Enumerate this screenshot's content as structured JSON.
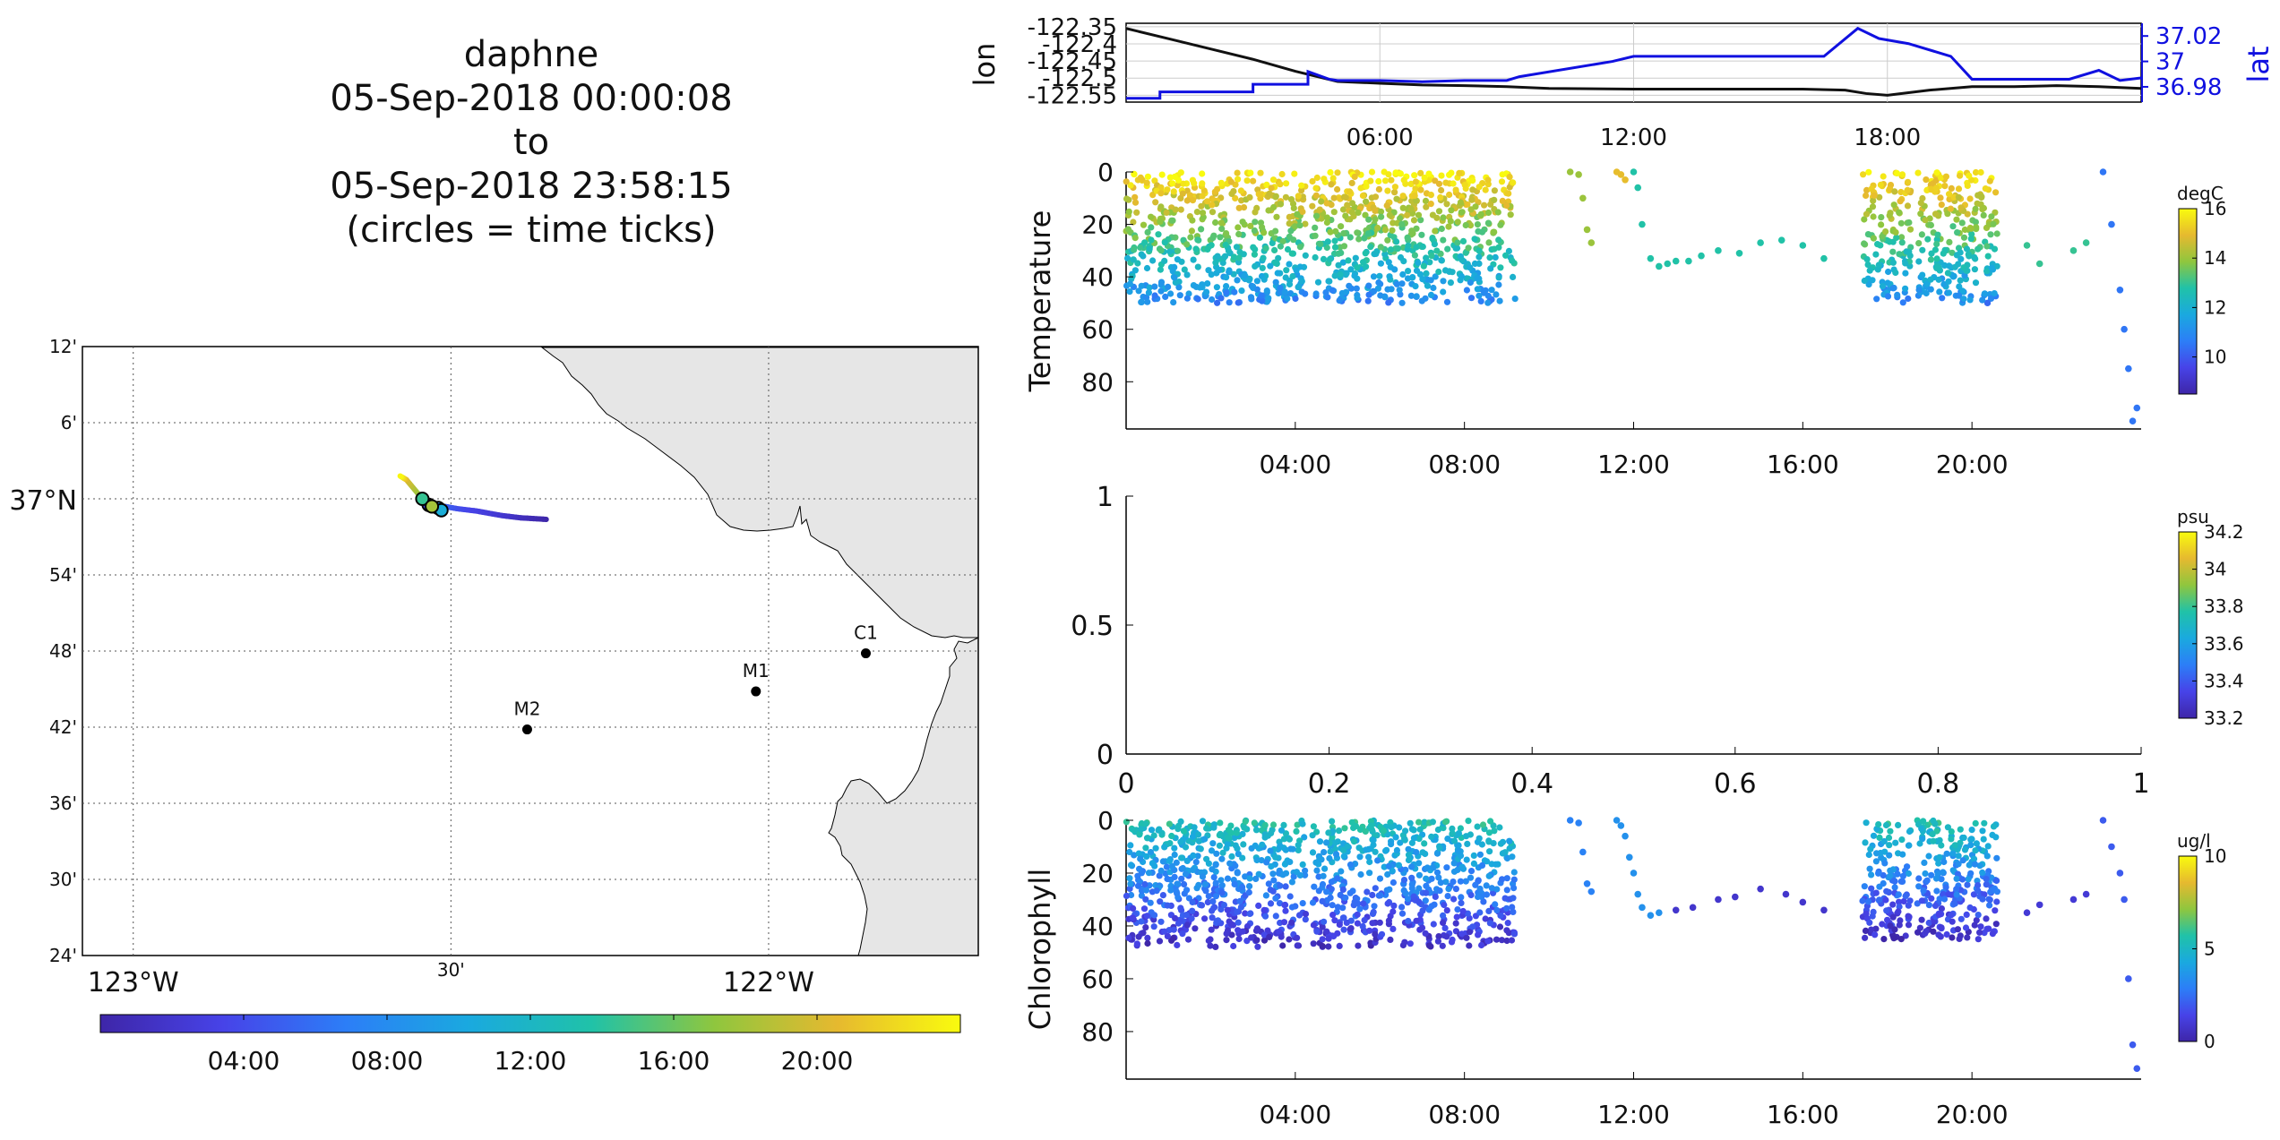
{
  "header": {
    "vehicle": "daphne",
    "start": "05-Sep-2018 00:00:08",
    "to": "to",
    "end": "05-Sep-2018 23:58:15",
    "note": "(circles = time ticks)"
  },
  "colors": {
    "lat_line": "#1010e0",
    "lon_line": "#111111",
    "land": "#e6e6e6",
    "colormap": [
      "#3e26a8",
      "#4743e8",
      "#2c7ef7",
      "#1aa9df",
      "#20c2a8",
      "#8fc63e",
      "#e6b92f",
      "#f9fb0e"
    ]
  },
  "chart_data": [
    {
      "type": "map",
      "lat_ticks": [
        "12'",
        "6'",
        "37°N",
        "54'",
        "48'",
        "42'",
        "36'",
        "30'",
        "24'"
      ],
      "lon_ticks": [
        "123°W",
        "30'",
        "122°W"
      ],
      "xlim": [
        -123.08,
        -121.67
      ],
      "ylim": [
        36.4,
        37.2
      ],
      "stations": [
        {
          "name": "C1",
          "lon": -121.847,
          "lat": 36.797
        },
        {
          "name": "M1",
          "lon": -122.02,
          "lat": 36.747
        },
        {
          "name": "M2",
          "lon": -122.38,
          "lat": 36.697
        }
      ],
      "track_time_ticks": [
        "04:00",
        "08:00",
        "12:00",
        "16:00",
        "20:00"
      ],
      "track_points": [
        {
          "lon": -122.35,
          "lat": 36.973,
          "t": 0
        },
        {
          "lon": -122.39,
          "lat": 36.975,
          "t": 1
        },
        {
          "lon": -122.42,
          "lat": 36.978,
          "t": 2
        },
        {
          "lon": -122.46,
          "lat": 36.984,
          "t": 3
        },
        {
          "lon": -122.49,
          "lat": 36.987,
          "t": 4
        },
        {
          "lon": -122.51,
          "lat": 36.99,
          "t": 5
        },
        {
          "lon": -122.525,
          "lat": 36.985,
          "t": 7
        },
        {
          "lon": -122.53,
          "lat": 36.99,
          "t": 9
        },
        {
          "lon": -122.535,
          "lat": 36.99,
          "t": 12
        },
        {
          "lon": -122.54,
          "lat": 36.995,
          "t": 15
        },
        {
          "lon": -122.55,
          "lat": 37.005,
          "t": 17
        },
        {
          "lon": -122.57,
          "lat": 37.025,
          "t": 20
        },
        {
          "lon": -122.58,
          "lat": 37.03,
          "t": 24
        }
      ]
    },
    {
      "type": "line",
      "ylabel": "lon",
      "ylabel_right": "lat",
      "y_ticks": [
        "-122.35",
        "-122.4",
        "-122.45",
        "-122.5",
        "-122.55"
      ],
      "y_ticks_right": [
        "37.02",
        "37",
        "36.98"
      ],
      "x_ticks": [
        "06:00",
        "12:00",
        "18:00"
      ],
      "xlim": [
        0,
        24
      ],
      "ylim": [
        -122.57,
        -122.34
      ],
      "ylim_right": [
        36.968,
        37.03
      ],
      "grid": true,
      "series": [
        {
          "axis": "left",
          "x": [
            0,
            1,
            2,
            3,
            4,
            5,
            6,
            7,
            8,
            9,
            10,
            12,
            14,
            16,
            17,
            17.5,
            18,
            19,
            20,
            21,
            22,
            23,
            24
          ],
          "y": [
            -122.355,
            -122.385,
            -122.415,
            -122.445,
            -122.48,
            -122.51,
            -122.515,
            -122.52,
            -122.522,
            -122.525,
            -122.53,
            -122.532,
            -122.532,
            -122.532,
            -122.535,
            -122.545,
            -122.55,
            -122.535,
            -122.525,
            -122.525,
            -122.522,
            -122.525,
            -122.53
          ]
        },
        {
          "axis": "right",
          "x": [
            0,
            0.8,
            0.8,
            3,
            3,
            4.3,
            4.3,
            4.8,
            5,
            6,
            7,
            8,
            9,
            9.3,
            11.5,
            12,
            16.5,
            17.3,
            17.8,
            18.5,
            19.5,
            20,
            21,
            22.3,
            23,
            23.5,
            24
          ],
          "y": [
            36.971,
            36.971,
            36.976,
            36.976,
            36.982,
            36.982,
            36.992,
            36.986,
            36.985,
            36.985,
            36.984,
            36.985,
            36.985,
            36.988,
            37.0,
            37.004,
            37.004,
            37.026,
            37.018,
            37.014,
            37.004,
            36.986,
            36.986,
            36.986,
            36.993,
            36.985,
            36.987
          ]
        }
      ]
    },
    {
      "type": "scatter",
      "ylabel": "Temperature",
      "x_ticks": [
        "04:00",
        "08:00",
        "12:00",
        "16:00",
        "20:00"
      ],
      "y_ticks": [
        "0",
        "20",
        "40",
        "60",
        "80"
      ],
      "xlim": [
        0,
        24
      ],
      "ylim": [
        0,
        98
      ],
      "y_reversed": true,
      "colorbar": {
        "label": "degC",
        "ticks": [
          "16",
          "14",
          "12",
          "10"
        ],
        "range": [
          8.5,
          16
        ]
      },
      "segments": [
        {
          "t_start": 0,
          "t_end": 9.2,
          "depth_max": 50,
          "surface_value": 15.8,
          "bottom_value": 10.8
        },
        {
          "t_start": 17.4,
          "t_end": 20.6,
          "depth_max": 50,
          "surface_value": 15.8,
          "bottom_value": 10.8
        }
      ],
      "tracks": [
        {
          "x": [
            10.5,
            10.7,
            10.8,
            10.9,
            11.0
          ],
          "y": [
            0,
            1,
            10,
            22,
            27
          ],
          "v": 14.0
        },
        {
          "x": [
            11.6,
            11.7,
            11.8
          ],
          "y": [
            0,
            1,
            3
          ],
          "v": 15.0
        },
        {
          "x": [
            12.0,
            12.1,
            12.2,
            12.4,
            12.6,
            12.8,
            13.0,
            13.3,
            13.6,
            14.0,
            14.5,
            15.0,
            15.5,
            16.0,
            16.5
          ],
          "y": [
            0,
            6,
            20,
            33,
            36,
            35,
            34,
            34,
            32,
            30,
            31,
            27,
            26,
            28,
            33
          ],
          "v": 12.8
        },
        {
          "x": [
            21.3,
            21.6,
            22.4,
            22.7
          ],
          "y": [
            28,
            35,
            30,
            27
          ],
          "v": 13.0
        },
        {
          "x": [
            23.1,
            23.3,
            23.5,
            23.6,
            23.7,
            23.8,
            23.9
          ],
          "y": [
            0,
            20,
            45,
            60,
            75,
            95,
            90
          ],
          "v": 10.5
        }
      ]
    },
    {
      "type": "scatter",
      "x_ticks": [
        "0",
        "0.2",
        "0.4",
        "0.6",
        "0.8",
        "1"
      ],
      "y_ticks": [
        "1",
        "0.5",
        "0"
      ],
      "xlim": [
        0,
        1
      ],
      "ylim": [
        0,
        1
      ],
      "colorbar": {
        "label": "psu",
        "ticks": [
          "34.2",
          "34",
          "33.8",
          "33.6",
          "33.4",
          "33.2"
        ],
        "range": [
          33.2,
          34.2
        ]
      },
      "series": []
    },
    {
      "type": "scatter",
      "ylabel": "Chlorophyll",
      "x_ticks": [
        "04:00",
        "08:00",
        "12:00",
        "16:00",
        "20:00"
      ],
      "y_ticks": [
        "0",
        "20",
        "40",
        "60",
        "80"
      ],
      "xlim": [
        0,
        24
      ],
      "ylim": [
        0,
        98
      ],
      "y_reversed": true,
      "colorbar": {
        "label": "ug/l",
        "ticks": [
          "10",
          "5",
          "0"
        ],
        "range": [
          0,
          10
        ]
      },
      "segments": [
        {
          "t_start": 0,
          "t_end": 9.2,
          "depth_max": 48,
          "surface_value": 5.5,
          "bottom_value": 0.5
        },
        {
          "t_start": 17.4,
          "t_end": 20.6,
          "depth_max": 45,
          "surface_value": 5.5,
          "bottom_value": 0.5
        }
      ],
      "tracks": [
        {
          "x": [
            10.5,
            10.7,
            10.8,
            10.9,
            11.0
          ],
          "y": [
            0,
            1,
            12,
            24,
            27
          ],
          "v": 3.0
        },
        {
          "x": [
            11.6,
            11.7,
            11.8,
            11.9,
            12.0,
            12.1,
            12.2,
            12.4,
            12.6
          ],
          "y": [
            0,
            2,
            6,
            14,
            20,
            28,
            33,
            36,
            35
          ],
          "v": 3.5
        },
        {
          "x": [
            13.0,
            13.4,
            14.0,
            14.4,
            15.0,
            15.6,
            16.0,
            16.5
          ],
          "y": [
            34,
            33,
            30,
            29,
            26,
            28,
            31,
            34
          ],
          "v": 0.8
        },
        {
          "x": [
            21.3,
            21.6,
            22.4,
            22.7
          ],
          "y": [
            35,
            32,
            30,
            28
          ],
          "v": 1.0
        },
        {
          "x": [
            23.1,
            23.3,
            23.5,
            23.6,
            23.7,
            23.8,
            23.9
          ],
          "y": [
            0,
            10,
            20,
            30,
            60,
            85,
            94
          ],
          "v": 2.0
        }
      ]
    }
  ]
}
